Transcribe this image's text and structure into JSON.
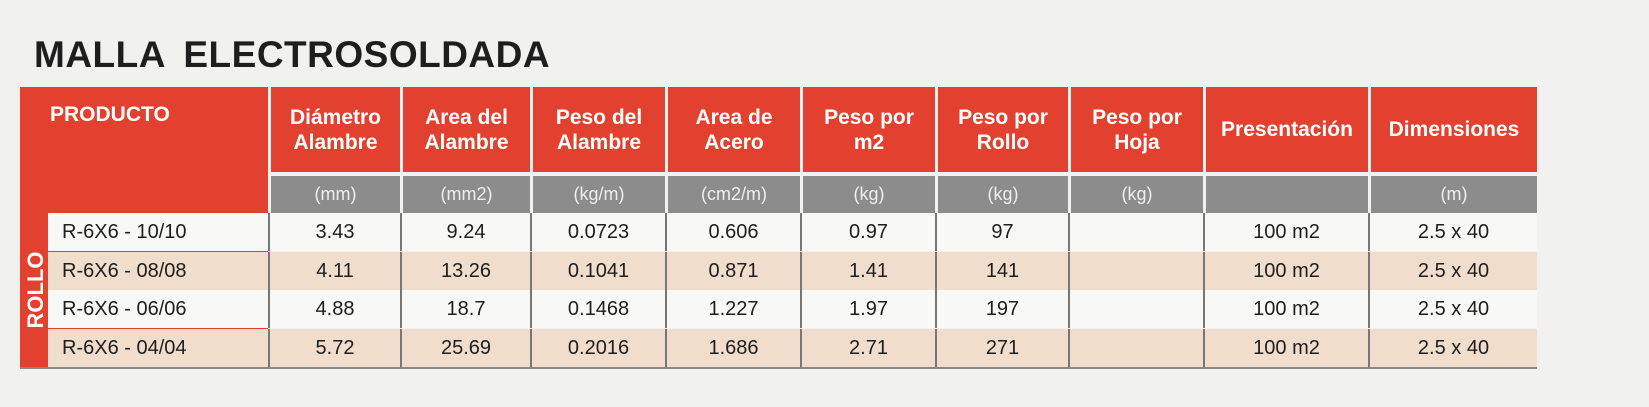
{
  "title": "MALLA  ELECTROSOLDADA",
  "product_header": "PRODUCTO",
  "group_label": "ROLLO",
  "columns": [
    {
      "label": "Diámetro Alambre",
      "unit": "(mm)"
    },
    {
      "label": "Area del Alambre",
      "unit": "(mm2)"
    },
    {
      "label": "Peso del Alambre",
      "unit": "(kg/m)"
    },
    {
      "label": "Area de Acero",
      "unit": "(cm2/m)"
    },
    {
      "label": "Peso por m2",
      "unit": "(kg)"
    },
    {
      "label": "Peso por Rollo",
      "unit": "(kg)"
    },
    {
      "label": "Peso por Hoja",
      "unit": "(kg)"
    },
    {
      "label": "Presentación",
      "unit": ""
    },
    {
      "label": "Dimensiones",
      "unit": "(m)"
    }
  ],
  "rows": [
    {
      "name": "R-6X6 - 10/10",
      "values": [
        "3.43",
        "9.24",
        "0.0723",
        "0.606",
        "0.97",
        "97",
        "",
        "100 m2",
        "2.5 x 40"
      ]
    },
    {
      "name": "R-6X6 - 08/08",
      "values": [
        "4.11",
        "13.26",
        "0.1041",
        "0.871",
        "1.41",
        "141",
        "",
        "100 m2",
        "2.5 x 40"
      ]
    },
    {
      "name": "R-6X6 - 06/06",
      "values": [
        "4.88",
        "18.7",
        "0.1468",
        "1.227",
        "1.97",
        "197",
        "",
        "100 m2",
        "2.5 x 40"
      ]
    },
    {
      "name": "R-6X6 - 04/04",
      "values": [
        "5.72",
        "25.69",
        "0.2016",
        "1.686",
        "2.71",
        "271",
        "",
        "100 m2",
        "2.5 x 40"
      ]
    }
  ]
}
